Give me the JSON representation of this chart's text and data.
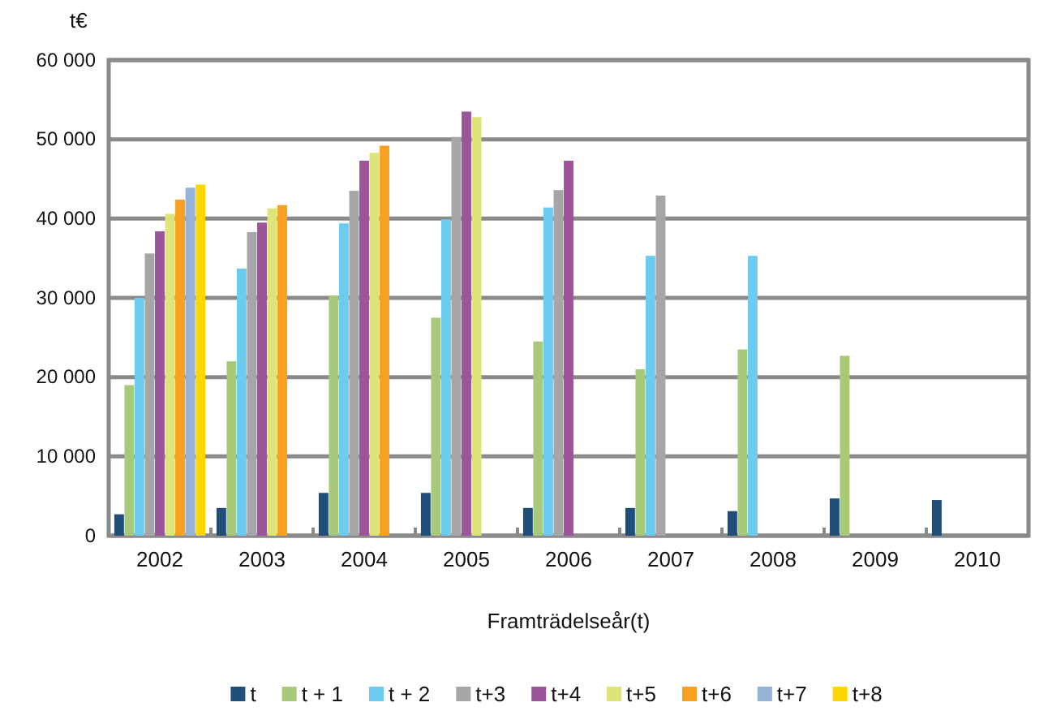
{
  "chart_data": {
    "type": "bar",
    "ylabel": "t€",
    "xlabel": "Framträdelseår(t)",
    "categories": [
      "2002",
      "2003",
      "2004",
      "2005",
      "2006",
      "2007",
      "2008",
      "2009",
      "2010"
    ],
    "series": [
      {
        "name": "t",
        "color": "#1f4e79",
        "values": [
          2700,
          3500,
          5400,
          5400,
          3500,
          3500,
          3100,
          4700,
          4500
        ]
      },
      {
        "name": "t + 1",
        "color": "#a9c97a",
        "values": [
          19000,
          22000,
          30300,
          27500,
          24500,
          21000,
          23500,
          22700,
          null
        ]
      },
      {
        "name": "t + 2",
        "color": "#6ecbf0",
        "values": [
          30000,
          33700,
          39400,
          39900,
          41400,
          35300,
          35300,
          null,
          null
        ]
      },
      {
        "name": "t+3",
        "color": "#a6a6a8",
        "values": [
          35600,
          38300,
          43500,
          50300,
          43600,
          42900,
          null,
          null,
          null
        ]
      },
      {
        "name": "t+4",
        "color": "#9b5598",
        "values": [
          38400,
          39500,
          47300,
          53500,
          47300,
          null,
          null,
          null,
          null
        ]
      },
      {
        "name": "t+5",
        "color": "#dde57a",
        "values": [
          40600,
          41300,
          48300,
          52800,
          null,
          null,
          null,
          null,
          null
        ]
      },
      {
        "name": "t+6",
        "color": "#f7a021",
        "values": [
          42400,
          41700,
          49200,
          null,
          null,
          null,
          null,
          null,
          null
        ]
      },
      {
        "name": "t+7",
        "color": "#95b3d7",
        "values": [
          43900,
          null,
          null,
          null,
          null,
          null,
          null,
          null,
          null
        ]
      },
      {
        "name": "t+8",
        "color": "#ffd700",
        "values": [
          44300,
          null,
          null,
          null,
          null,
          null,
          null,
          null,
          null
        ]
      }
    ],
    "ylim": [
      0,
      60000
    ],
    "yticks": [
      {
        "value": 0,
        "label": "0"
      },
      {
        "value": 10000,
        "label": "10 000"
      },
      {
        "value": 20000,
        "label": "20 000"
      },
      {
        "value": 30000,
        "label": "30 000"
      },
      {
        "value": 40000,
        "label": "40 000"
      },
      {
        "value": 50000,
        "label": "50 000"
      },
      {
        "value": 60000,
        "label": "60 000"
      }
    ],
    "grid": "y",
    "legend": "bottom"
  }
}
